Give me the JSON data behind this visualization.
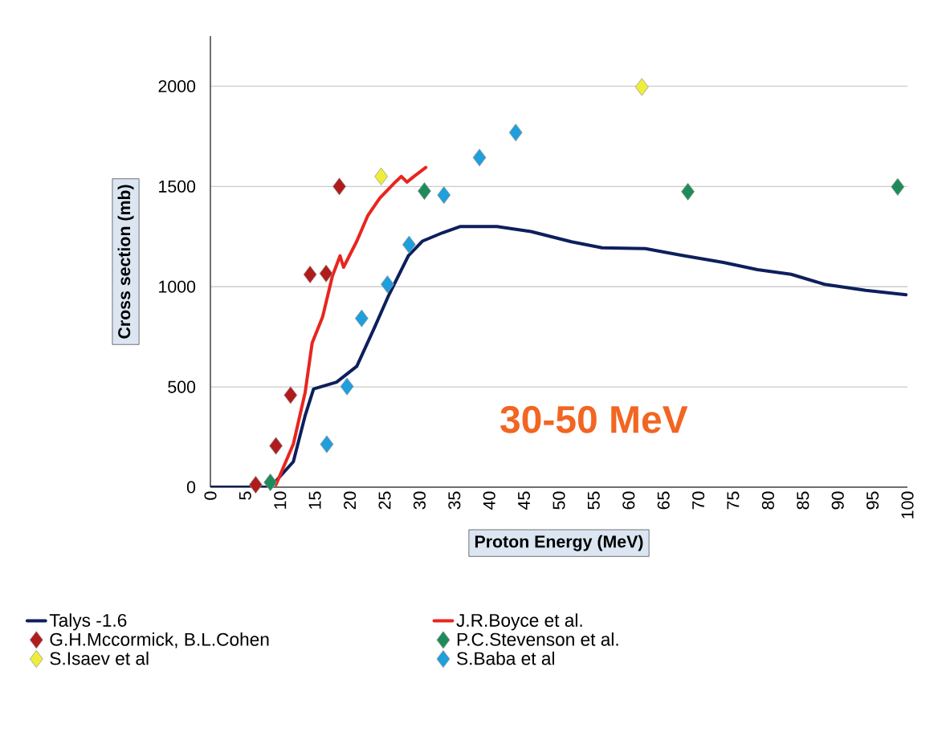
{
  "chart_data": {
    "type": "scatter",
    "xlabel": "Proton Energy (MeV)",
    "ylabel": "Cross section (mb)",
    "annotations": [
      "30-50 MeV"
    ],
    "xlim": [
      0,
      100
    ],
    "ylim": [
      0,
      2250
    ],
    "xticks": [
      0,
      5,
      10,
      15,
      20,
      25,
      30,
      35,
      40,
      45,
      50,
      55,
      60,
      65,
      70,
      75,
      80,
      85,
      90,
      95,
      100
    ],
    "yticks": [
      0,
      500,
      1000,
      1500,
      2000
    ],
    "grid": "y",
    "legend": "bottom",
    "series": [
      {
        "name": "Talys -1.6",
        "type": "line",
        "color": "#0d1f5c",
        "line_style": "solid",
        "x": [
          0,
          5,
          8.6,
          11.9,
          13.6,
          14.8,
          18.1,
          21,
          23.5,
          25.5,
          28.4,
          30.4,
          33.3,
          35.8,
          41.1,
          46,
          51.8,
          56.2,
          62.4,
          67.7,
          73.6,
          78.5,
          83.3,
          88.1,
          94,
          99.8
        ],
        "values": [
          0,
          0,
          0,
          127,
          358,
          490,
          524,
          603,
          793,
          951,
          1154,
          1227,
          1269,
          1300,
          1300,
          1275,
          1224,
          1194,
          1190,
          1156,
          1121,
          1085,
          1062,
          1012,
          982,
          960
        ]
      },
      {
        "name": "J.R.Boyce et al.",
        "type": "line",
        "color": "#e8251f",
        "line_style": "solid",
        "x": [
          9.4,
          11.9,
          13.6,
          14.6,
          16.1,
          17.5,
          18.6,
          19.1,
          21,
          22.6,
          24.3,
          26.3,
          27.4,
          28.2,
          29.2,
          30.9
        ],
        "values": [
          12,
          215,
          474,
          720,
          850,
          1053,
          1154,
          1097,
          1227,
          1356,
          1442,
          1514,
          1550,
          1522,
          1550,
          1595
        ]
      },
      {
        "name": "G.H.Mccormick, B.L.Cohen",
        "marker": "diamond",
        "color": "#b01c1c",
        "x": [
          6.5,
          9.4,
          11.5,
          14.3,
          16.6,
          18.5
        ],
        "values": [
          12,
          206,
          459,
          1061,
          1066,
          1500
        ]
      },
      {
        "name": "P.C.Stevenson et al.",
        "marker": "diamond",
        "color": "#1e8c5a",
        "x": [
          8.6,
          30.7,
          68.5,
          98.6
        ],
        "values": [
          24,
          1477,
          1474,
          1498
        ]
      },
      {
        "name": "S.Isaev et al",
        "marker": "diamond",
        "color": "#eeee3a",
        "x": [
          24.5,
          61.9
        ],
        "values": [
          1550,
          1996
        ]
      },
      {
        "name": "S.Baba et al",
        "marker": "diamond",
        "color": "#1f9fdc",
        "x": [
          16.7,
          19.6,
          21.7,
          25.4,
          28.5,
          33.5,
          38.6,
          43.8
        ],
        "values": [
          214,
          502,
          842,
          1012,
          1210,
          1457,
          1644,
          1769
        ]
      }
    ]
  }
}
